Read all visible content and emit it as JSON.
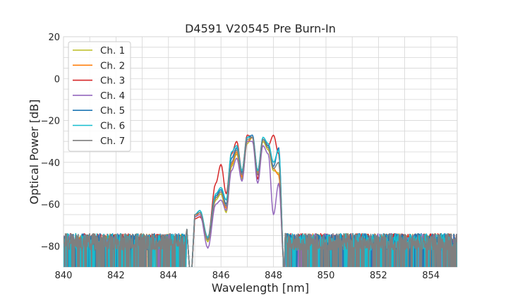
{
  "chart_data": {
    "type": "line",
    "title": "D4591 V20545 Pre Burn-In",
    "xlabel": "Wavelength [nm]",
    "ylabel": "Optical Power [dB]",
    "xlim": [
      840,
      855
    ],
    "ylim": [
      -90,
      20
    ],
    "xticks": [
      840,
      842,
      844,
      846,
      848,
      850,
      852,
      854
    ],
    "yticks": [
      20,
      0,
      -20,
      -40,
      -60,
      -80
    ],
    "xtick_labels": [
      "840",
      "842",
      "844",
      "846",
      "848",
      "850",
      "852",
      "854"
    ],
    "ytick_labels": [
      "20",
      "0",
      "−20",
      "−40",
      "−60",
      "−80"
    ],
    "grid": true,
    "legend_position": "top-left",
    "noise_floor": -80,
    "series": [
      {
        "name": "Ch. 1",
        "color": "#bcbd22",
        "points": [
          [
            845.0,
            -66
          ],
          [
            845.2,
            -64
          ],
          [
            845.5,
            -78
          ],
          [
            845.8,
            -58
          ],
          [
            846.0,
            -55
          ],
          [
            846.2,
            -64
          ],
          [
            846.4,
            -42
          ],
          [
            846.6,
            -36
          ],
          [
            846.8,
            -48
          ],
          [
            847.0,
            -31
          ],
          [
            847.2,
            -28
          ],
          [
            847.4,
            -46
          ],
          [
            847.6,
            -30
          ],
          [
            847.8,
            -34
          ],
          [
            848.0,
            -44
          ],
          [
            848.2,
            -45
          ],
          [
            848.4,
            -88
          ]
        ]
      },
      {
        "name": "Ch. 2",
        "color": "#ff7f0e",
        "points": [
          [
            845.0,
            -66
          ],
          [
            845.2,
            -64
          ],
          [
            845.5,
            -77
          ],
          [
            845.8,
            -57
          ],
          [
            846.0,
            -54
          ],
          [
            846.2,
            -62
          ],
          [
            846.4,
            -41
          ],
          [
            846.6,
            -35
          ],
          [
            846.8,
            -47
          ],
          [
            847.0,
            -30
          ],
          [
            847.2,
            -28
          ],
          [
            847.4,
            -45
          ],
          [
            847.6,
            -29
          ],
          [
            847.8,
            -33
          ],
          [
            848.0,
            -43
          ],
          [
            848.2,
            -46
          ],
          [
            848.4,
            -88
          ]
        ]
      },
      {
        "name": "Ch. 3",
        "color": "#d62728",
        "points": [
          [
            845.0,
            -67
          ],
          [
            845.2,
            -66
          ],
          [
            845.5,
            -76
          ],
          [
            845.8,
            -50
          ],
          [
            846.0,
            -41
          ],
          [
            846.2,
            -55
          ],
          [
            846.4,
            -36
          ],
          [
            846.6,
            -30
          ],
          [
            846.8,
            -44
          ],
          [
            847.0,
            -27
          ],
          [
            847.2,
            -28
          ],
          [
            847.4,
            -48
          ],
          [
            847.6,
            -29
          ],
          [
            847.8,
            -32
          ],
          [
            848.0,
            -27
          ],
          [
            848.2,
            -36
          ],
          [
            848.4,
            -88
          ]
        ]
      },
      {
        "name": "Ch. 4",
        "color": "#9467bd",
        "points": [
          [
            845.0,
            -66
          ],
          [
            845.2,
            -65
          ],
          [
            845.5,
            -81
          ],
          [
            845.8,
            -60
          ],
          [
            846.0,
            -58
          ],
          [
            846.2,
            -63
          ],
          [
            846.4,
            -44
          ],
          [
            846.6,
            -38
          ],
          [
            846.8,
            -49
          ],
          [
            847.0,
            -30
          ],
          [
            847.2,
            -30
          ],
          [
            847.4,
            -50
          ],
          [
            847.6,
            -32
          ],
          [
            847.8,
            -36
          ],
          [
            848.0,
            -65
          ],
          [
            848.2,
            -50
          ],
          [
            848.4,
            -88
          ]
        ]
      },
      {
        "name": "Ch. 5",
        "color": "#1f77b4",
        "points": [
          [
            845.0,
            -65
          ],
          [
            845.2,
            -63
          ],
          [
            845.5,
            -77
          ],
          [
            845.8,
            -56
          ],
          [
            846.0,
            -53
          ],
          [
            846.2,
            -60
          ],
          [
            846.4,
            -38
          ],
          [
            846.6,
            -33
          ],
          [
            846.8,
            -45
          ],
          [
            847.0,
            -28
          ],
          [
            847.2,
            -27
          ],
          [
            847.4,
            -44
          ],
          [
            847.6,
            -29
          ],
          [
            847.8,
            -32
          ],
          [
            848.0,
            -42
          ],
          [
            848.2,
            -33
          ],
          [
            848.4,
            -88
          ]
        ]
      },
      {
        "name": "Ch. 6",
        "color": "#17becf",
        "points": [
          [
            845.0,
            -65
          ],
          [
            845.2,
            -63
          ],
          [
            845.5,
            -76
          ],
          [
            845.8,
            -55
          ],
          [
            846.0,
            -52
          ],
          [
            846.2,
            -58
          ],
          [
            846.4,
            -35
          ],
          [
            846.6,
            -32
          ],
          [
            846.8,
            -44
          ],
          [
            847.0,
            -28
          ],
          [
            847.2,
            -28
          ],
          [
            847.4,
            -44
          ],
          [
            847.6,
            -28
          ],
          [
            847.8,
            -31
          ],
          [
            848.0,
            -40
          ],
          [
            848.2,
            -34
          ],
          [
            848.4,
            -88
          ]
        ]
      },
      {
        "name": "Ch. 7",
        "color": "#7f7f7f",
        "points": [
          [
            845.0,
            -65
          ],
          [
            845.2,
            -64
          ],
          [
            845.5,
            -77
          ],
          [
            845.8,
            -57
          ],
          [
            846.0,
            -54
          ],
          [
            846.2,
            -61
          ],
          [
            846.4,
            -40
          ],
          [
            846.6,
            -34
          ],
          [
            846.8,
            -46
          ],
          [
            847.0,
            -29
          ],
          [
            847.2,
            -28
          ],
          [
            847.4,
            -46
          ],
          [
            847.6,
            -29
          ],
          [
            847.8,
            -33
          ],
          [
            848.0,
            -43
          ],
          [
            848.2,
            -40
          ],
          [
            848.4,
            -88
          ]
        ]
      }
    ]
  }
}
